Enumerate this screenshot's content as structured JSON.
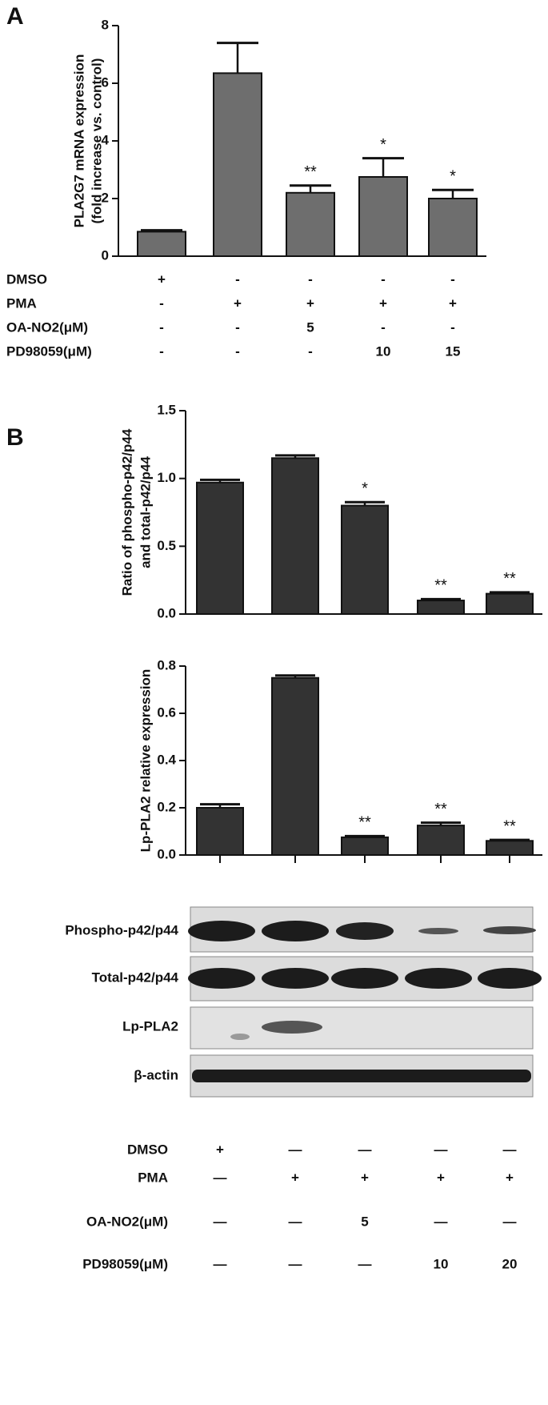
{
  "panel_labels": [
    "A",
    "B"
  ],
  "chart_data": [
    {
      "type": "bar",
      "y_label": [
        "PLA2G7 mRNA expression",
        "(fold increase vs. control)"
      ],
      "categories": [
        null,
        null,
        null,
        null,
        null
      ],
      "color": "#6e6e6e",
      "values": [
        0.85,
        6.35,
        2.2,
        2.75,
        2.0
      ],
      "errors": [
        0.05,
        1.05,
        0.25,
        0.65,
        0.3
      ],
      "annotations": [
        null,
        null,
        "**",
        "*",
        "*"
      ],
      "ylim": [
        0,
        8
      ],
      "yticks": [
        0,
        2,
        4,
        6,
        8
      ]
    },
    {
      "type": "bar",
      "y_label": [
        "Ratio of phospho-p42/p44",
        "and total-p42/p44"
      ],
      "categories": [
        null,
        null,
        null,
        null,
        null
      ],
      "color": "#333333",
      "values": [
        0.97,
        1.15,
        0.8,
        0.1,
        0.15
      ],
      "errors": [
        0.02,
        0.02,
        0.025,
        0.01,
        0.01
      ],
      "annotations": [
        null,
        null,
        "*",
        "**",
        "**"
      ],
      "ylim": [
        0,
        1.5
      ],
      "yticks": [
        {
          "value": 0,
          "label": "0.0"
        },
        0.5,
        {
          "value": 1,
          "label": "1.0"
        },
        1.5
      ]
    },
    {
      "type": "bar",
      "y_label": [
        "Lp-PLA2 relative expression"
      ],
      "categories": [
        null,
        null,
        null,
        null,
        null
      ],
      "color": "#333333",
      "values": [
        0.2,
        0.75,
        0.075,
        0.125,
        0.06
      ],
      "errors": [
        0.015,
        0.01,
        0.005,
        0.012,
        0.004
      ],
      "annotations": [
        null,
        null,
        "**",
        "**",
        "**"
      ],
      "ylim": [
        0,
        0.8
      ],
      "yticks": [
        {
          "value": 0,
          "label": "0.0"
        },
        0.2,
        0.4,
        0.6,
        0.8
      ]
    }
  ],
  "treatments_a": {
    "rows": [
      {
        "label": "DMSO",
        "values": [
          "+",
          "-",
          "-",
          "-",
          "-"
        ]
      },
      {
        "label": "PMA",
        "values": [
          "-",
          "+",
          "+",
          "+",
          "+"
        ]
      },
      {
        "label": "OA-NO2(μM)",
        "values": [
          "-",
          "-",
          "5",
          "-",
          "-"
        ]
      },
      {
        "label": "PD98059(μM)",
        "values": [
          "-",
          "-",
          "-",
          "10",
          "15"
        ]
      }
    ]
  },
  "blot": {
    "labels": [
      "Phospho-p42/p44",
      "Total-p42/p44",
      "Lp-PLA2",
      "β-actin"
    ]
  },
  "treatments_b": {
    "rows": [
      {
        "label": "DMSO",
        "values": [
          "+",
          "—",
          "—",
          "—",
          "—"
        ]
      },
      {
        "label": "PMA",
        "values": [
          "—",
          "+",
          "+",
          "+",
          "+"
        ]
      },
      {
        "label": "OA-NO2(μM)",
        "values": [
          "—",
          "—",
          "5",
          "—",
          "—"
        ]
      },
      {
        "label": "PD98059(μM)",
        "values": [
          "—",
          "—",
          "—",
          "10",
          "20"
        ]
      }
    ]
  }
}
